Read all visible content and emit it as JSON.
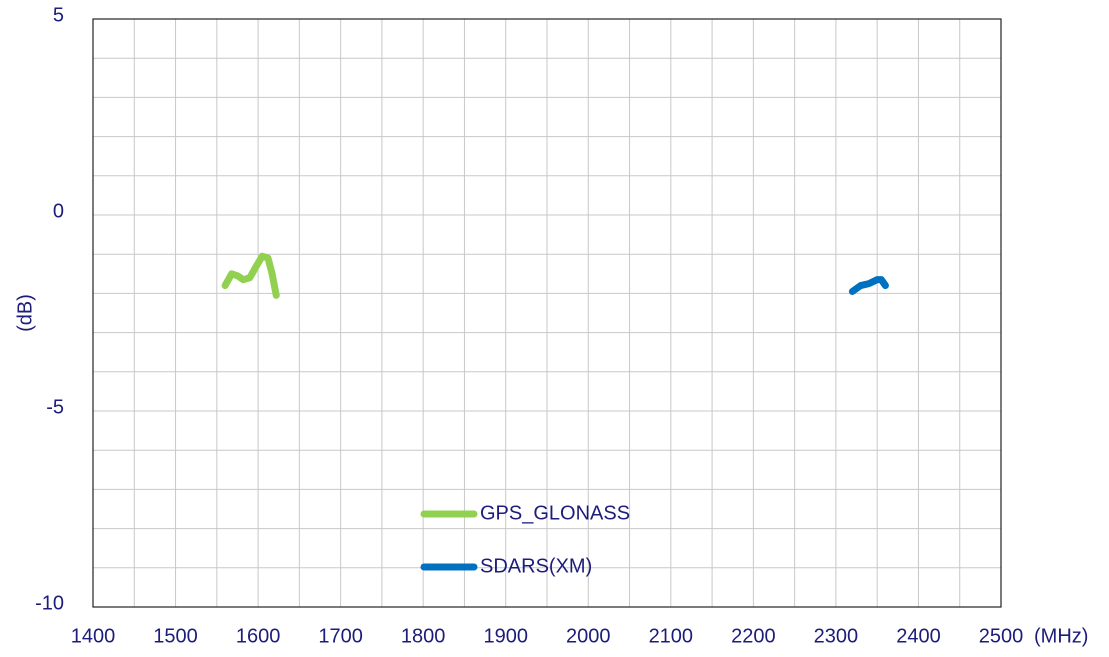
{
  "chart_data": {
    "type": "line",
    "xlabel": "(MHz)",
    "ylabel": "(dB)",
    "xlim": [
      1400,
      2500
    ],
    "ylim": [
      -10,
      5
    ],
    "xticks": [
      1400,
      1500,
      1600,
      1700,
      1800,
      1900,
      2000,
      2100,
      2200,
      2300,
      2400,
      2500
    ],
    "yticks": [
      -10,
      -5,
      0,
      5
    ],
    "xminorticks": [
      1450,
      1550,
      1650,
      1750,
      1850,
      1950,
      2050,
      2150,
      2250,
      2350,
      2450
    ],
    "yminorticks": [
      -9,
      -8,
      -7,
      -6,
      -4,
      -3,
      -2,
      -1,
      1,
      2,
      3,
      4
    ],
    "grid": true,
    "legend": "lower center",
    "series": [
      {
        "name": "GPS_GLONASS",
        "color": "#92d050",
        "x": [
          1560,
          1568,
          1575,
          1582,
          1590,
          1598,
          1605,
          1612,
          1617,
          1622
        ],
        "values": [
          -1.8,
          -1.5,
          -1.55,
          -1.65,
          -1.6,
          -1.3,
          -1.05,
          -1.1,
          -1.5,
          -2.05
        ]
      },
      {
        "name": "SDARS(XM)",
        "color": "#0070c0",
        "x": [
          2320,
          2330,
          2340,
          2350,
          2355,
          2360
        ],
        "values": [
          -1.95,
          -1.8,
          -1.75,
          -1.65,
          -1.65,
          -1.8
        ]
      }
    ]
  }
}
